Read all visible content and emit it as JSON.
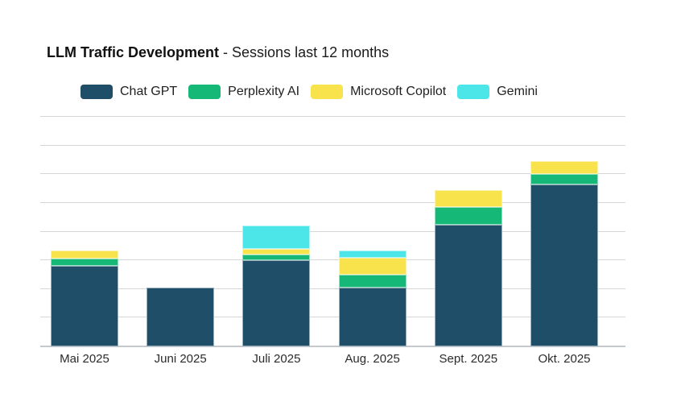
{
  "title": {
    "main": "LLM Traffic Development",
    "sub": " - Sessions last 12 months"
  },
  "chart_data": {
    "type": "bar",
    "stacked": true,
    "title": "LLM Traffic Development - Sessions last 12 months",
    "xlabel": "",
    "ylabel": "",
    "categories": [
      "Mai 2025",
      "Juni 2025",
      "Juli 2025",
      "Aug. 2025",
      "Sept. 2025",
      "Okt. 2025"
    ],
    "series": [
      {
        "name": "Chat GPT",
        "color": "#1f4e68",
        "values": [
          2.8,
          2.05,
          3.0,
          2.05,
          4.25,
          5.65
        ]
      },
      {
        "name": "Perplexity AI",
        "color": "#16b877",
        "values": [
          0.25,
          0,
          0.2,
          0.45,
          0.6,
          0.35
        ]
      },
      {
        "name": "Microsoft Copilot",
        "color": "#f9e34c",
        "values": [
          0.3,
          0,
          0.2,
          0.6,
          0.6,
          0.45
        ]
      },
      {
        "name": "Gemini",
        "color": "#4de6e8",
        "values": [
          0,
          0,
          0.8,
          0.25,
          0,
          0
        ]
      }
    ],
    "ylim": [
      0,
      8
    ],
    "y_tick_labels_visible": false,
    "gridlines_count": 9,
    "grid": true,
    "legend_position": "top",
    "note": "y-axis has no tick labels; values are in gridline-interval units estimated from the unlabeled grid"
  },
  "colors": {
    "gridline": "#d6d6d6",
    "baseline": "#c4c9cd",
    "background": "#ffffff"
  }
}
